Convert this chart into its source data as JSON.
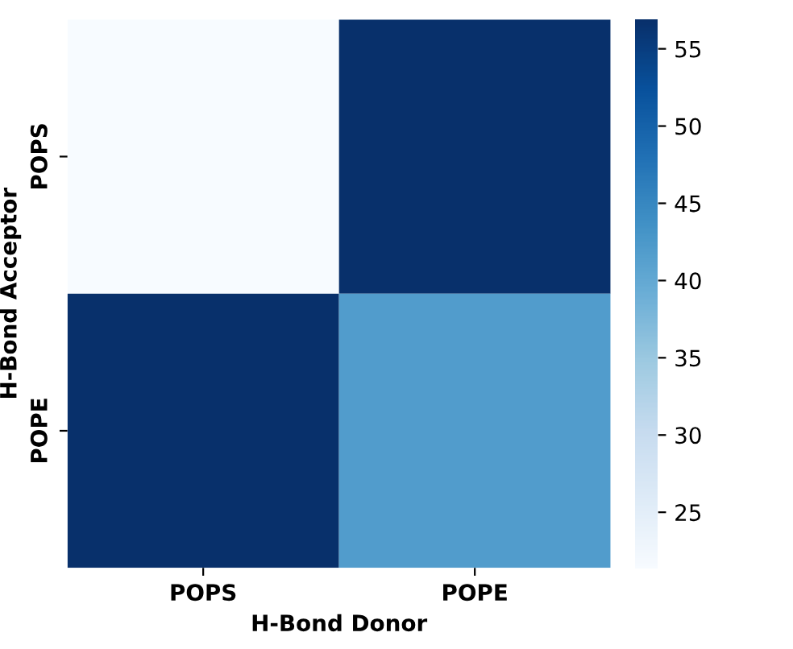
{
  "chart_data": {
    "type": "heatmap",
    "xlabel": "H-Bond Donor",
    "ylabel": "H-Bond Acceptor",
    "categories": [
      "POPS",
      "POPE"
    ],
    "y_categories": [
      "POPS",
      "POPE"
    ],
    "cells": [
      [
        21.4,
        56.9
      ],
      [
        56.9,
        42
      ]
    ],
    "clim": [
      21.4,
      56.9
    ],
    "cticks": [
      25,
      30,
      35,
      40,
      45,
      50,
      55
    ]
  }
}
